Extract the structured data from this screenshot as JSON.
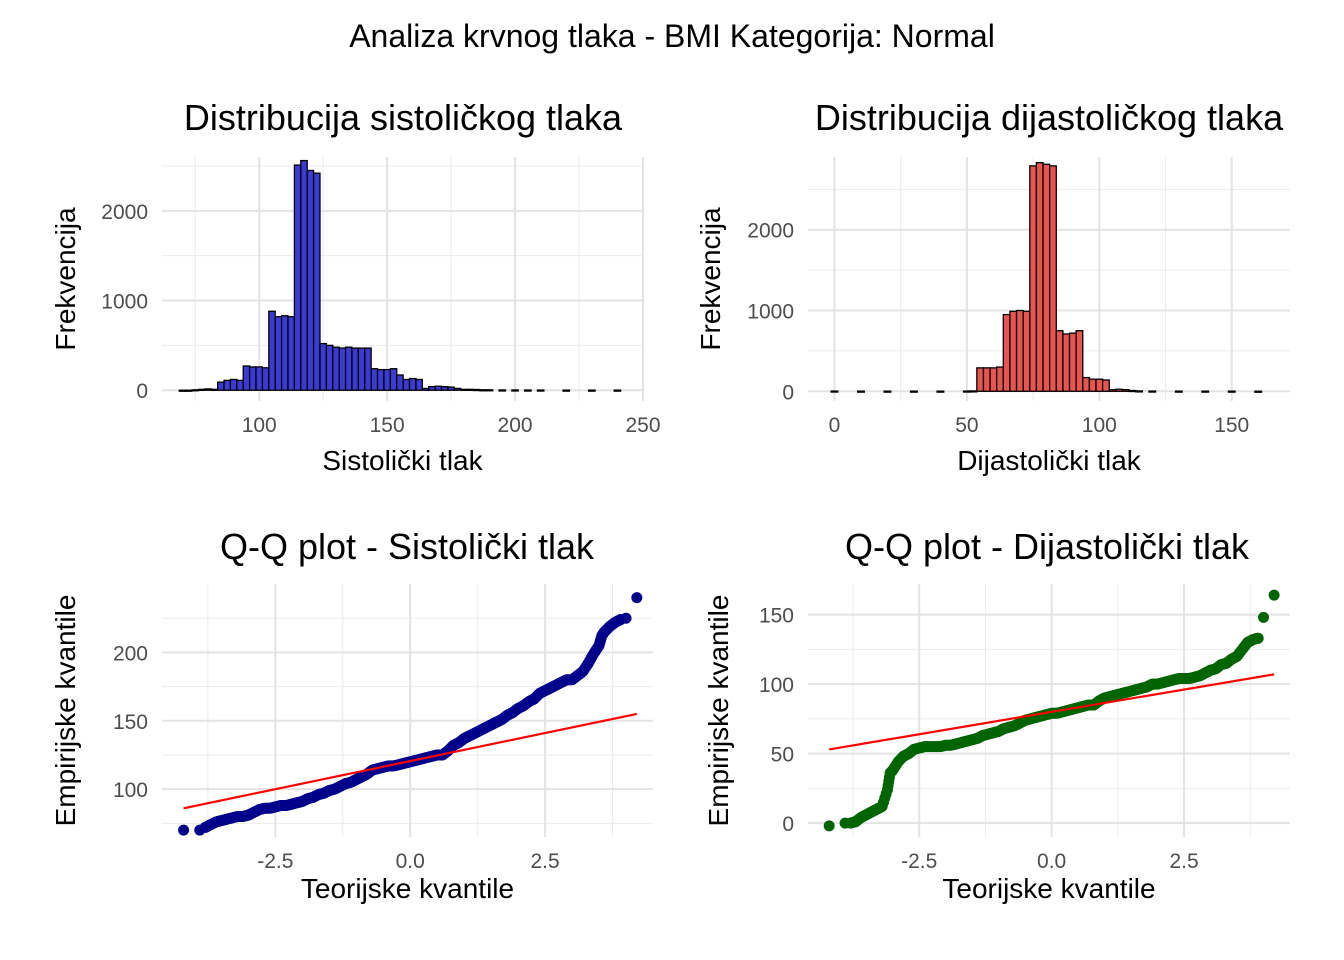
{
  "title": "Analiza krvnog tlaka - BMI Kategorija: Normal",
  "chart_data": [
    {
      "type": "bar",
      "title": "Distribucija sistoličkog tlaka",
      "xlabel": "Sistolički tlak",
      "ylabel": "Frekvencija",
      "xlim": [
        62,
        250
      ],
      "ylim": [
        -120,
        2600
      ],
      "xticks": [
        100,
        150,
        200,
        250
      ],
      "yticks": [
        0,
        1000,
        2000
      ],
      "grid": true,
      "colors": {
        "fill": "#3b3bd4",
        "edge": "#000000"
      },
      "bin_width": 2.5,
      "bins": [
        {
          "x": 70,
          "y": 0
        },
        {
          "x": 72.5,
          "y": 0
        },
        {
          "x": 75,
          "y": 5
        },
        {
          "x": 77.5,
          "y": 10
        },
        {
          "x": 80,
          "y": 15
        },
        {
          "x": 82.5,
          "y": 10
        },
        {
          "x": 85,
          "y": 90
        },
        {
          "x": 87.5,
          "y": 110
        },
        {
          "x": 90,
          "y": 120
        },
        {
          "x": 92.5,
          "y": 110
        },
        {
          "x": 95,
          "y": 270
        },
        {
          "x": 97.5,
          "y": 260
        },
        {
          "x": 100,
          "y": 260
        },
        {
          "x": 102.5,
          "y": 250
        },
        {
          "x": 105,
          "y": 880
        },
        {
          "x": 107.5,
          "y": 820
        },
        {
          "x": 110,
          "y": 830
        },
        {
          "x": 112.5,
          "y": 820
        },
        {
          "x": 115,
          "y": 2510
        },
        {
          "x": 117.5,
          "y": 2560
        },
        {
          "x": 120,
          "y": 2450
        },
        {
          "x": 122.5,
          "y": 2420
        },
        {
          "x": 125,
          "y": 520
        },
        {
          "x": 127.5,
          "y": 500
        },
        {
          "x": 130,
          "y": 480
        },
        {
          "x": 132.5,
          "y": 470
        },
        {
          "x": 135,
          "y": 480
        },
        {
          "x": 137.5,
          "y": 470
        },
        {
          "x": 140,
          "y": 470
        },
        {
          "x": 142.5,
          "y": 470
        },
        {
          "x": 145,
          "y": 240
        },
        {
          "x": 147.5,
          "y": 230
        },
        {
          "x": 150,
          "y": 230
        },
        {
          "x": 152.5,
          "y": 240
        },
        {
          "x": 155,
          "y": 170
        },
        {
          "x": 157.5,
          "y": 120
        },
        {
          "x": 160,
          "y": 130
        },
        {
          "x": 162.5,
          "y": 120
        },
        {
          "x": 165,
          "y": 20
        },
        {
          "x": 167.5,
          "y": 40
        },
        {
          "x": 170,
          "y": 45
        },
        {
          "x": 172.5,
          "y": 40
        },
        {
          "x": 175,
          "y": 35
        },
        {
          "x": 177.5,
          "y": 20
        },
        {
          "x": 180,
          "y": 10
        },
        {
          "x": 182.5,
          "y": 10
        },
        {
          "x": 185,
          "y": 8
        },
        {
          "x": 187.5,
          "y": 5
        },
        {
          "x": 190,
          "y": 5
        },
        {
          "x": 195,
          "y": 3
        },
        {
          "x": 200,
          "y": 3
        },
        {
          "x": 205,
          "y": 2
        },
        {
          "x": 210,
          "y": 2
        },
        {
          "x": 220,
          "y": 1
        },
        {
          "x": 230,
          "y": 1
        },
        {
          "x": 240,
          "y": 1
        }
      ]
    },
    {
      "type": "bar",
      "title": "Distribucija dijastoličkog tlaka",
      "xlabel": "Dijastolički tlak",
      "ylabel": "Frekvencija",
      "xlim": [
        -10,
        172
      ],
      "ylim": [
        -120,
        2900
      ],
      "xticks": [
        0,
        50,
        100,
        150
      ],
      "yticks": [
        0,
        1000,
        2000
      ],
      "grid": true,
      "colors": {
        "fill": "#e85450",
        "edge": "#000000"
      },
      "bin_width": 2.5,
      "bins": [
        {
          "x": 0,
          "y": 3
        },
        {
          "x": 10,
          "y": 2
        },
        {
          "x": 20,
          "y": 2
        },
        {
          "x": 30,
          "y": 2
        },
        {
          "x": 40,
          "y": 2
        },
        {
          "x": 50,
          "y": 3
        },
        {
          "x": 52.5,
          "y": 5
        },
        {
          "x": 55,
          "y": 290
        },
        {
          "x": 57.5,
          "y": 290
        },
        {
          "x": 60,
          "y": 290
        },
        {
          "x": 62.5,
          "y": 300
        },
        {
          "x": 65,
          "y": 950
        },
        {
          "x": 67.5,
          "y": 990
        },
        {
          "x": 70,
          "y": 1000
        },
        {
          "x": 72.5,
          "y": 990
        },
        {
          "x": 75,
          "y": 2790
        },
        {
          "x": 77.5,
          "y": 2830
        },
        {
          "x": 80,
          "y": 2810
        },
        {
          "x": 82.5,
          "y": 2790
        },
        {
          "x": 85,
          "y": 750
        },
        {
          "x": 87.5,
          "y": 710
        },
        {
          "x": 90,
          "y": 720
        },
        {
          "x": 92.5,
          "y": 750
        },
        {
          "x": 95,
          "y": 170
        },
        {
          "x": 97.5,
          "y": 150
        },
        {
          "x": 100,
          "y": 150
        },
        {
          "x": 102.5,
          "y": 140
        },
        {
          "x": 105,
          "y": 20
        },
        {
          "x": 107.5,
          "y": 25
        },
        {
          "x": 110,
          "y": 20
        },
        {
          "x": 112.5,
          "y": 10
        },
        {
          "x": 115,
          "y": 5
        },
        {
          "x": 120,
          "y": 3
        },
        {
          "x": 130,
          "y": 2
        },
        {
          "x": 140,
          "y": 2
        },
        {
          "x": 150,
          "y": 2
        },
        {
          "x": 160,
          "y": 1
        }
      ]
    },
    {
      "type": "scatter",
      "title": "Q-Q plot - Sistolički tlak",
      "xlabel": "Teorijske kvantile",
      "ylabel": "Empirijske kvantile",
      "xlim": [
        -4.6,
        4.5
      ],
      "ylim": [
        65,
        250
      ],
      "xticks": [
        -2.5,
        0.0,
        2.5
      ],
      "xtick_labels": [
        "-2.5",
        "0.0",
        "2.5"
      ],
      "yticks": [
        100,
        150,
        200
      ],
      "grid": true,
      "colors": {
        "points": "#00008b",
        "line": "#ff0000"
      },
      "reference_line": {
        "x": [
          -4.2,
          4.2
        ],
        "y": [
          86,
          155
        ]
      },
      "points": [
        [
          -4.2,
          70
        ],
        [
          -3.9,
          70
        ],
        [
          -3.8,
          72
        ],
        [
          -3.7,
          74
        ],
        [
          -3.6,
          76
        ],
        [
          -3.5,
          77
        ],
        [
          -3.4,
          78
        ],
        [
          -3.3,
          79
        ],
        [
          -3.2,
          80
        ],
        [
          -3.1,
          80
        ],
        [
          -3.0,
          81
        ],
        [
          -2.9,
          83
        ],
        [
          -2.8,
          85
        ],
        [
          -2.7,
          86
        ],
        [
          -2.6,
          86
        ],
        [
          -2.5,
          87
        ],
        [
          -2.4,
          88
        ],
        [
          -2.3,
          88
        ],
        [
          -2.2,
          89
        ],
        [
          -2.1,
          90
        ],
        [
          -2.0,
          91
        ],
        [
          -1.9,
          93
        ],
        [
          -1.8,
          94
        ],
        [
          -1.7,
          96
        ],
        [
          -1.6,
          97
        ],
        [
          -1.5,
          99
        ],
        [
          -1.4,
          100
        ],
        [
          -1.3,
          102
        ],
        [
          -1.2,
          104
        ],
        [
          -1.1,
          105
        ],
        [
          -1.0,
          107
        ],
        [
          -0.9,
          109
        ],
        [
          -0.8,
          111
        ],
        [
          -0.7,
          114
        ],
        [
          -0.6,
          115
        ],
        [
          -0.5,
          116
        ],
        [
          -0.4,
          117
        ],
        [
          -0.3,
          117
        ],
        [
          -0.2,
          118
        ],
        [
          -0.1,
          119
        ],
        [
          0.0,
          120
        ],
        [
          0.1,
          121
        ],
        [
          0.2,
          122
        ],
        [
          0.3,
          123
        ],
        [
          0.4,
          124
        ],
        [
          0.5,
          125
        ],
        [
          0.6,
          125
        ],
        [
          0.7,
          128
        ],
        [
          0.8,
          132
        ],
        [
          0.9,
          134
        ],
        [
          1.0,
          137
        ],
        [
          1.1,
          139
        ],
        [
          1.2,
          141
        ],
        [
          1.3,
          143
        ],
        [
          1.4,
          145
        ],
        [
          1.5,
          147
        ],
        [
          1.6,
          149
        ],
        [
          1.7,
          151
        ],
        [
          1.8,
          154
        ],
        [
          1.9,
          156
        ],
        [
          2.0,
          159
        ],
        [
          2.1,
          161
        ],
        [
          2.2,
          164
        ],
        [
          2.3,
          166
        ],
        [
          2.4,
          170
        ],
        [
          2.5,
          172
        ],
        [
          2.6,
          174
        ],
        [
          2.7,
          176
        ],
        [
          2.8,
          178
        ],
        [
          2.9,
          180
        ],
        [
          3.0,
          180
        ],
        [
          3.1,
          183
        ],
        [
          3.2,
          186
        ],
        [
          3.3,
          192
        ],
        [
          3.4,
          199
        ],
        [
          3.5,
          205
        ],
        [
          3.55,
          212
        ],
        [
          3.6,
          215
        ],
        [
          3.7,
          219
        ],
        [
          3.8,
          222
        ],
        [
          3.9,
          224
        ],
        [
          4.0,
          225
        ],
        [
          4.2,
          240
        ]
      ]
    },
    {
      "type": "scatter",
      "title": "Q-Q plot - Dijastolički tlak",
      "xlabel": "Teorijske kvantile",
      "ylabel": "Empirijske kvantile",
      "xlim": [
        -4.6,
        4.5
      ],
      "ylim": [
        -10,
        172
      ],
      "xticks": [
        -2.5,
        0.0,
        2.5
      ],
      "xtick_labels": [
        "-2.5",
        "0.0",
        "2.5"
      ],
      "yticks": [
        0,
        50,
        100,
        150
      ],
      "grid": true,
      "colors": {
        "points": "#006400",
        "line": "#ff0000"
      },
      "reference_line": {
        "x": [
          -4.2,
          4.2
        ],
        "y": [
          53,
          107
        ]
      },
      "points": [
        [
          -4.2,
          -2
        ],
        [
          -3.9,
          0
        ],
        [
          -3.8,
          0
        ],
        [
          -3.7,
          1
        ],
        [
          -3.6,
          4
        ],
        [
          -3.5,
          6
        ],
        [
          -3.4,
          8
        ],
        [
          -3.3,
          10
        ],
        [
          -3.2,
          12
        ],
        [
          -3.1,
          24
        ],
        [
          -3.05,
          36
        ],
        [
          -3.0,
          38
        ],
        [
          -2.9,
          44
        ],
        [
          -2.8,
          48
        ],
        [
          -2.7,
          50
        ],
        [
          -2.6,
          53
        ],
        [
          -2.5,
          54
        ],
        [
          -2.4,
          55
        ],
        [
          -2.3,
          55
        ],
        [
          -2.2,
          55
        ],
        [
          -2.1,
          55
        ],
        [
          -2.0,
          56
        ],
        [
          -1.9,
          56
        ],
        [
          -1.8,
          57
        ],
        [
          -1.7,
          58
        ],
        [
          -1.6,
          59
        ],
        [
          -1.5,
          60
        ],
        [
          -1.4,
          61
        ],
        [
          -1.3,
          63
        ],
        [
          -1.2,
          64
        ],
        [
          -1.1,
          65
        ],
        [
          -1.0,
          66
        ],
        [
          -0.9,
          68
        ],
        [
          -0.8,
          69
        ],
        [
          -0.7,
          70
        ],
        [
          -0.6,
          72
        ],
        [
          -0.5,
          74
        ],
        [
          -0.4,
          75
        ],
        [
          -0.3,
          76
        ],
        [
          -0.2,
          77
        ],
        [
          -0.1,
          78
        ],
        [
          0.0,
          79
        ],
        [
          0.1,
          79
        ],
        [
          0.2,
          80
        ],
        [
          0.3,
          81
        ],
        [
          0.4,
          82
        ],
        [
          0.5,
          83
        ],
        [
          0.6,
          84
        ],
        [
          0.7,
          85
        ],
        [
          0.8,
          85
        ],
        [
          0.9,
          88
        ],
        [
          1.0,
          90
        ],
        [
          1.1,
          91
        ],
        [
          1.2,
          92
        ],
        [
          1.3,
          93
        ],
        [
          1.4,
          94
        ],
        [
          1.5,
          95
        ],
        [
          1.6,
          96
        ],
        [
          1.7,
          97
        ],
        [
          1.8,
          98
        ],
        [
          1.9,
          100
        ],
        [
          2.0,
          100
        ],
        [
          2.1,
          101
        ],
        [
          2.2,
          102
        ],
        [
          2.3,
          103
        ],
        [
          2.4,
          104
        ],
        [
          2.5,
          104
        ],
        [
          2.6,
          104
        ],
        [
          2.7,
          105
        ],
        [
          2.8,
          106
        ],
        [
          2.9,
          108
        ],
        [
          3.0,
          110
        ],
        [
          3.1,
          111
        ],
        [
          3.2,
          114
        ],
        [
          3.3,
          115
        ],
        [
          3.4,
          118
        ],
        [
          3.5,
          120
        ],
        [
          3.6,
          125
        ],
        [
          3.7,
          130
        ],
        [
          3.8,
          132
        ],
        [
          3.9,
          133
        ],
        [
          4.0,
          148
        ],
        [
          4.2,
          164
        ]
      ]
    }
  ]
}
